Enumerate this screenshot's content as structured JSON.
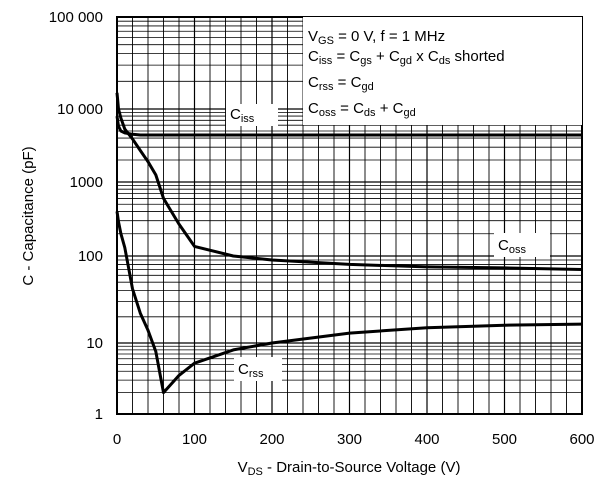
{
  "chart_data": {
    "type": "line",
    "xlabel": {
      "main": "V",
      "sub": "DS",
      "rest": " - Drain-to-Source Voltage (V)"
    },
    "ylabel": "C - Capacitance (pF)",
    "xlim": [
      0,
      600
    ],
    "ylim": [
      1,
      100000
    ],
    "yscale": "log",
    "xticks": [
      0,
      100,
      200,
      300,
      400,
      500,
      600
    ],
    "xtick_labels": [
      "0",
      "100",
      "200",
      "300",
      "400",
      "500",
      "600"
    ],
    "yticks": [
      1,
      10,
      100,
      1000,
      10000,
      100000
    ],
    "ytick_labels": [
      "1",
      "10",
      "100",
      "1000",
      "10 000",
      "100 000"
    ],
    "grid": true,
    "series": [
      {
        "name": "Ciss",
        "label": {
          "main": "C",
          "sub": "iss"
        },
        "x": [
          0,
          2,
          5,
          10,
          20,
          30,
          50,
          100,
          200,
          300,
          400,
          500,
          600
        ],
        "y": [
          8000,
          5800,
          5000,
          4700,
          4500,
          4400,
          4400,
          4400,
          4400,
          4400,
          4400,
          4400,
          4400
        ]
      },
      {
        "name": "Coss",
        "label": {
          "main": "C",
          "sub": "oss"
        },
        "x": [
          0,
          2,
          5,
          10,
          20,
          30,
          40,
          50,
          60,
          70,
          80,
          100,
          150,
          200,
          300,
          400,
          500,
          600
        ],
        "y": [
          15000,
          10000,
          7500,
          5300,
          3900,
          2700,
          1900,
          1250,
          600,
          400,
          270,
          135,
          100,
          90,
          80,
          75,
          73,
          70
        ]
      },
      {
        "name": "Crss",
        "label": {
          "main": "C",
          "sub": "rss"
        },
        "x": [
          0,
          2,
          5,
          10,
          20,
          30,
          40,
          50,
          60,
          80,
          100,
          150,
          200,
          300,
          400,
          500,
          600
        ],
        "y": [
          400,
          290,
          200,
          130,
          42,
          22,
          14,
          7.6,
          2,
          3.5,
          5.2,
          8,
          10,
          13,
          15,
          16,
          16.5
        ]
      }
    ],
    "legend": {
      "position": "top-right",
      "lines": [
        [
          {
            "t": "V"
          },
          {
            "t": "GS",
            "sub": true
          },
          {
            "t": " = 0 V, f = 1 MHz"
          }
        ],
        [
          {
            "t": "C"
          },
          {
            "t": "iss",
            "sub": true
          },
          {
            "t": " = C"
          },
          {
            "t": "gs",
            "sub": true
          },
          {
            "t": " + C"
          },
          {
            "t": "gd",
            "sub": true
          },
          {
            "t": " x C"
          },
          {
            "t": "ds",
            "sub": true
          },
          {
            "t": " shorted"
          }
        ],
        [
          {
            "t": "C"
          },
          {
            "t": "rss",
            "sub": true
          },
          {
            "t": " = C"
          },
          {
            "t": "gd",
            "sub": true
          }
        ],
        [
          {
            "t": "C"
          },
          {
            "t": "oss",
            "sub": true
          },
          {
            "t": " = C"
          },
          {
            "t": "ds",
            "sub": true
          },
          {
            "t": " + C"
          },
          {
            "t": "gd",
            "sub": true
          }
        ]
      ]
    }
  }
}
